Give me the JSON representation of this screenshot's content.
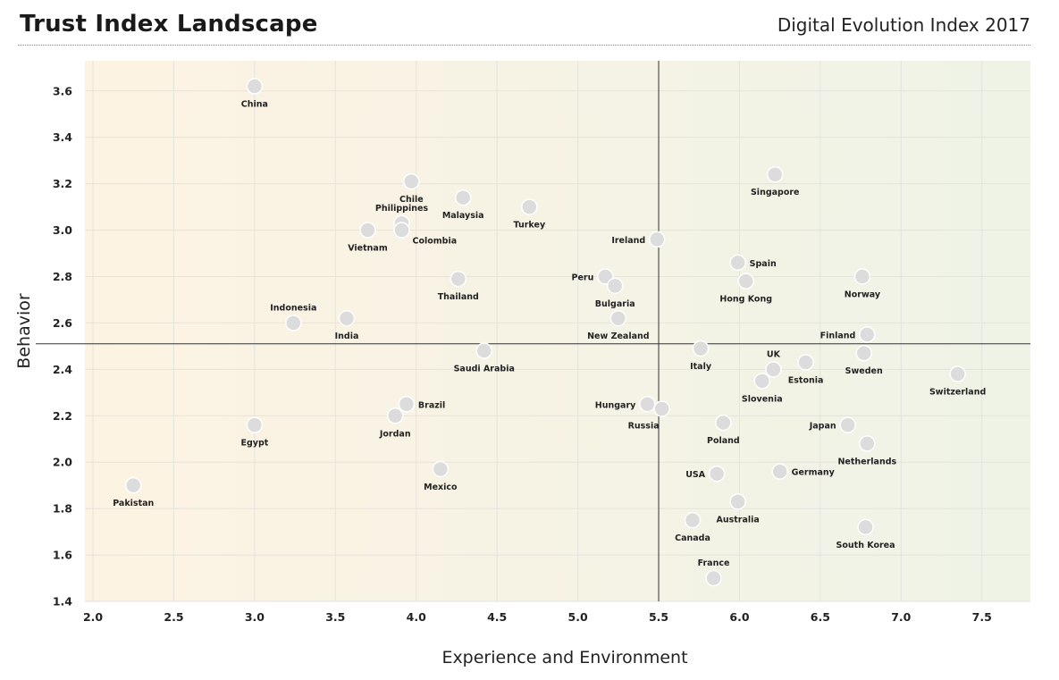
{
  "header": {
    "title": "Trust Index Landscape",
    "subtitle": "Digital Evolution Index 2017"
  },
  "chart_data": {
    "type": "scatter",
    "xlabel": "Experience and Environment",
    "ylabel": "Behavior",
    "xlim": [
      1.95,
      7.8
    ],
    "ylim": [
      1.4,
      3.73
    ],
    "xticks": [
      "2.0",
      "2.5",
      "3.0",
      "3.5",
      "4.0",
      "4.5",
      "5.0",
      "5.5",
      "6.0",
      "6.5",
      "7.0",
      "7.5"
    ],
    "yticks": [
      "3.6",
      "3.4",
      "3.2",
      "3.0",
      "2.8",
      "2.6",
      "2.4",
      "2.2",
      "2.0",
      "1.8",
      "1.6",
      "1.4"
    ],
    "grid": true,
    "quadrant_lines": {
      "x": 5.5,
      "y": 2.51
    },
    "background": {
      "left_color": "#fdf3e3",
      "right_color": "#eef3e6"
    },
    "marker_color": "#dcdcdc",
    "points": [
      {
        "label": "China",
        "x": 3.0,
        "y": 3.62,
        "pos": "below"
      },
      {
        "label": "Chile",
        "x": 3.97,
        "y": 3.21,
        "pos": "below"
      },
      {
        "label": "Philippines",
        "x": 3.91,
        "y": 3.03,
        "pos": "above"
      },
      {
        "label": "Colombia",
        "x": 3.91,
        "y": 3.0,
        "pos": "belowright"
      },
      {
        "label": "Vietnam",
        "x": 3.7,
        "y": 3.0,
        "pos": "below"
      },
      {
        "label": "Malaysia",
        "x": 4.29,
        "y": 3.14,
        "pos": "below"
      },
      {
        "label": "Turkey",
        "x": 4.7,
        "y": 3.1,
        "pos": "below"
      },
      {
        "label": "Singapore",
        "x": 6.22,
        "y": 3.24,
        "pos": "below"
      },
      {
        "label": "Ireland",
        "x": 5.49,
        "y": 2.96,
        "pos": "left"
      },
      {
        "label": "Spain",
        "x": 5.99,
        "y": 2.86,
        "pos": "right"
      },
      {
        "label": "Hong Kong",
        "x": 6.04,
        "y": 2.78,
        "pos": "below"
      },
      {
        "label": "Norway",
        "x": 6.76,
        "y": 2.8,
        "pos": "below"
      },
      {
        "label": "Peru",
        "x": 5.17,
        "y": 2.8,
        "pos": "left"
      },
      {
        "label": "Bulgaria",
        "x": 5.23,
        "y": 2.76,
        "pos": "below"
      },
      {
        "label": "Thailand",
        "x": 4.26,
        "y": 2.79,
        "pos": "below"
      },
      {
        "label": "Indonesia",
        "x": 3.24,
        "y": 2.6,
        "pos": "above"
      },
      {
        "label": "India",
        "x": 3.57,
        "y": 2.62,
        "pos": "below"
      },
      {
        "label": "New Zealand",
        "x": 5.25,
        "y": 2.62,
        "pos": "below"
      },
      {
        "label": "Finland",
        "x": 6.79,
        "y": 2.55,
        "pos": "left"
      },
      {
        "label": "Saudi Arabia",
        "x": 4.42,
        "y": 2.48,
        "pos": "below"
      },
      {
        "label": "Italy",
        "x": 5.76,
        "y": 2.49,
        "pos": "below"
      },
      {
        "label": "Sweden",
        "x": 6.77,
        "y": 2.47,
        "pos": "below"
      },
      {
        "label": "UK",
        "x": 6.21,
        "y": 2.4,
        "pos": "above"
      },
      {
        "label": "Estonia",
        "x": 6.41,
        "y": 2.43,
        "pos": "below"
      },
      {
        "label": "Slovenia",
        "x": 6.14,
        "y": 2.35,
        "pos": "below"
      },
      {
        "label": "Switzerland",
        "x": 7.35,
        "y": 2.38,
        "pos": "below"
      },
      {
        "label": "Brazil",
        "x": 3.94,
        "y": 2.25,
        "pos": "right"
      },
      {
        "label": "Jordan",
        "x": 3.87,
        "y": 2.2,
        "pos": "below"
      },
      {
        "label": "Hungary",
        "x": 5.43,
        "y": 2.25,
        "pos": "left"
      },
      {
        "label": "Russia",
        "x": 5.52,
        "y": 2.23,
        "pos": "belowleft"
      },
      {
        "label": "Egypt",
        "x": 3.0,
        "y": 2.16,
        "pos": "below"
      },
      {
        "label": "Poland",
        "x": 5.9,
        "y": 2.17,
        "pos": "below"
      },
      {
        "label": "Japan",
        "x": 6.67,
        "y": 2.16,
        "pos": "left"
      },
      {
        "label": "Netherlands",
        "x": 6.79,
        "y": 2.08,
        "pos": "below"
      },
      {
        "label": "Mexico",
        "x": 4.15,
        "y": 1.97,
        "pos": "below"
      },
      {
        "label": "USA",
        "x": 5.86,
        "y": 1.95,
        "pos": "left"
      },
      {
        "label": "Germany",
        "x": 6.25,
        "y": 1.96,
        "pos": "right"
      },
      {
        "label": "Pakistan",
        "x": 2.25,
        "y": 1.9,
        "pos": "below"
      },
      {
        "label": "Australia",
        "x": 5.99,
        "y": 1.83,
        "pos": "below"
      },
      {
        "label": "Canada",
        "x": 5.71,
        "y": 1.75,
        "pos": "below"
      },
      {
        "label": "South Korea",
        "x": 6.78,
        "y": 1.72,
        "pos": "below"
      },
      {
        "label": "France",
        "x": 5.84,
        "y": 1.5,
        "pos": "above"
      }
    ]
  }
}
